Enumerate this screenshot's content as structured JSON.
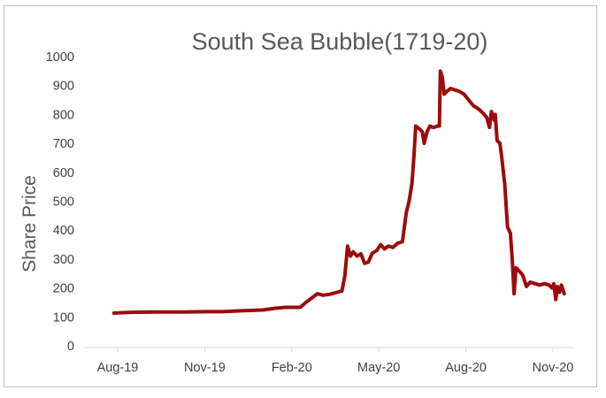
{
  "chart_data": {
    "type": "line",
    "title": "South Sea Bubble(1719-20)",
    "xlabel": "",
    "ylabel": "Share Price",
    "ylim": [
      0,
      1000
    ],
    "yticks": [
      0,
      100,
      200,
      300,
      400,
      500,
      600,
      700,
      800,
      900,
      1000
    ],
    "xticks": [
      "Aug-19",
      "Nov-19",
      "Feb-20",
      "May-20",
      "Aug-20",
      "Nov-20"
    ],
    "grid": false,
    "line_color": "#9b0c0c",
    "series": [
      {
        "name": "",
        "points": [
          [
            "1719-07-28",
            113
          ],
          [
            "1719-08-15",
            116
          ],
          [
            "1719-09-10",
            117
          ],
          [
            "1719-10-10",
            117
          ],
          [
            "1719-11-01",
            118
          ],
          [
            "1719-11-20",
            118
          ],
          [
            "1719-12-10",
            121
          ],
          [
            "1720-01-01",
            124
          ],
          [
            "1720-01-15",
            130
          ],
          [
            "1720-01-25",
            133
          ],
          [
            "1720-02-05",
            133
          ],
          [
            "1720-02-10",
            133
          ],
          [
            "1720-02-16",
            150
          ],
          [
            "1720-02-22",
            165
          ],
          [
            "1720-02-28",
            180
          ],
          [
            "1720-03-05",
            175
          ],
          [
            "1720-03-12",
            178
          ],
          [
            "1720-03-20",
            185
          ],
          [
            "1720-03-25",
            190
          ],
          [
            "1720-03-28",
            240
          ],
          [
            "1720-03-31",
            345
          ],
          [
            "1720-04-03",
            310
          ],
          [
            "1720-04-06",
            325
          ],
          [
            "1720-04-10",
            310
          ],
          [
            "1720-04-14",
            318
          ],
          [
            "1720-04-18",
            285
          ],
          [
            "1720-04-22",
            290
          ],
          [
            "1720-04-26",
            320
          ],
          [
            "1720-05-01",
            330
          ],
          [
            "1720-05-05",
            350
          ],
          [
            "1720-05-09",
            335
          ],
          [
            "1720-05-13",
            345
          ],
          [
            "1720-05-18",
            340
          ],
          [
            "1720-05-23",
            355
          ],
          [
            "1720-05-28",
            360
          ],
          [
            "1720-06-01",
            460
          ],
          [
            "1720-06-04",
            500
          ],
          [
            "1720-06-07",
            560
          ],
          [
            "1720-06-09",
            650
          ],
          [
            "1720-06-11",
            760
          ],
          [
            "1720-06-15",
            750
          ],
          [
            "1720-06-18",
            740
          ],
          [
            "1720-06-20",
            700
          ],
          [
            "1720-06-23",
            740
          ],
          [
            "1720-06-26",
            760
          ],
          [
            "1720-06-30",
            755
          ],
          [
            "1720-07-04",
            760
          ],
          [
            "1720-07-06",
            760
          ],
          [
            "1720-07-07",
            950
          ],
          [
            "1720-07-09",
            930
          ],
          [
            "1720-07-11",
            870
          ],
          [
            "1720-07-14",
            880
          ],
          [
            "1720-07-18",
            890
          ],
          [
            "1720-07-22",
            885
          ],
          [
            "1720-07-27",
            880
          ],
          [
            "1720-08-01",
            870
          ],
          [
            "1720-08-06",
            850
          ],
          [
            "1720-08-11",
            830
          ],
          [
            "1720-08-16",
            820
          ],
          [
            "1720-08-21",
            805
          ],
          [
            "1720-08-25",
            790
          ],
          [
            "1720-08-28",
            755
          ],
          [
            "1720-08-30",
            810
          ],
          [
            "1720-09-02",
            780
          ],
          [
            "1720-09-03",
            800
          ],
          [
            "1720-09-05",
            710
          ],
          [
            "1720-09-08",
            700
          ],
          [
            "1720-09-10",
            650
          ],
          [
            "1720-09-13",
            560
          ],
          [
            "1720-09-16",
            410
          ],
          [
            "1720-09-19",
            390
          ],
          [
            "1720-09-21",
            300
          ],
          [
            "1720-09-23",
            180
          ],
          [
            "1720-09-25",
            270
          ],
          [
            "1720-09-28",
            260
          ],
          [
            "1720-10-02",
            245
          ],
          [
            "1720-10-06",
            205
          ],
          [
            "1720-10-10",
            220
          ],
          [
            "1720-10-15",
            215
          ],
          [
            "1720-10-20",
            210
          ],
          [
            "1720-10-25",
            215
          ],
          [
            "1720-10-30",
            210
          ],
          [
            "1720-11-02",
            200
          ],
          [
            "1720-11-04",
            215
          ],
          [
            "1720-11-06",
            160
          ],
          [
            "1720-11-08",
            205
          ],
          [
            "1720-11-10",
            185
          ],
          [
            "1720-11-12",
            210
          ],
          [
            "1720-11-15",
            180
          ]
        ]
      }
    ]
  }
}
